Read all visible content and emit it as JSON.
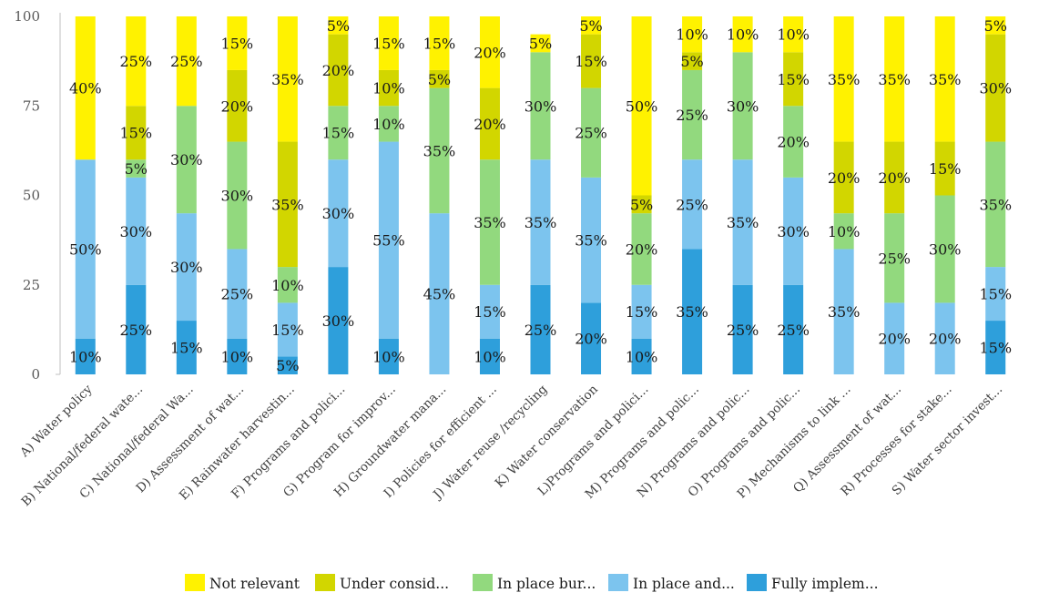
{
  "chart_data": {
    "type": "bar",
    "stacked": true,
    "percent_stacked": true,
    "ylim": [
      0,
      100
    ],
    "yticks": [
      0,
      25,
      50,
      75,
      100
    ],
    "grid": false,
    "legend_position": "bottom",
    "categories": [
      "A) Water policy",
      "B) National/federal wate...",
      "C) National/federal Wa...",
      "D) Assessment of wat...",
      "E) Rainwater harvestin...",
      "F) Programs and polici...",
      "G) Program for improv...",
      "H) Groundwater mana...",
      "I) Policies for efficient ...",
      "J) Water reuse /recycling",
      "K) Water conservation",
      "L)Programs and polici...",
      "M) Programs and polic...",
      "N) Programs and polic...",
      "O) Programs and polic...",
      "P) Mechanisms to link ...",
      "Q) Assessment of wat...",
      "R) Processes for stake...",
      "S) Water sector invest..."
    ],
    "series": [
      {
        "name": "Fully implem...",
        "color": "#2E9FDB",
        "values": [
          10,
          25,
          15,
          10,
          5,
          30,
          10,
          0,
          10,
          25,
          20,
          10,
          35,
          25,
          25,
          0,
          0,
          0,
          15
        ]
      },
      {
        "name": "In place and...",
        "color": "#7CC4EE",
        "values": [
          50,
          30,
          30,
          25,
          15,
          30,
          55,
          45,
          15,
          35,
          35,
          15,
          25,
          35,
          30,
          35,
          20,
          20,
          15
        ]
      },
      {
        "name": "In place bur...",
        "color": "#92D97E",
        "values": [
          0,
          5,
          30,
          30,
          10,
          15,
          10,
          35,
          35,
          30,
          25,
          20,
          25,
          30,
          20,
          10,
          25,
          30,
          35
        ]
      },
      {
        "name": "Under consid...",
        "color": "#D2D600",
        "values": [
          0,
          15,
          0,
          20,
          35,
          20,
          10,
          5,
          20,
          0,
          15,
          5,
          5,
          0,
          15,
          20,
          20,
          15,
          30
        ]
      },
      {
        "name": "Not relevant",
        "color": "#FFF200",
        "values": [
          40,
          25,
          25,
          15,
          35,
          5,
          15,
          15,
          20,
          5,
          5,
          50,
          10,
          10,
          10,
          35,
          35,
          35,
          5
        ]
      }
    ],
    "legend_order": [
      "Not relevant",
      "Under consid...",
      "In place bur...",
      "In place and...",
      "Fully implem..."
    ]
  }
}
